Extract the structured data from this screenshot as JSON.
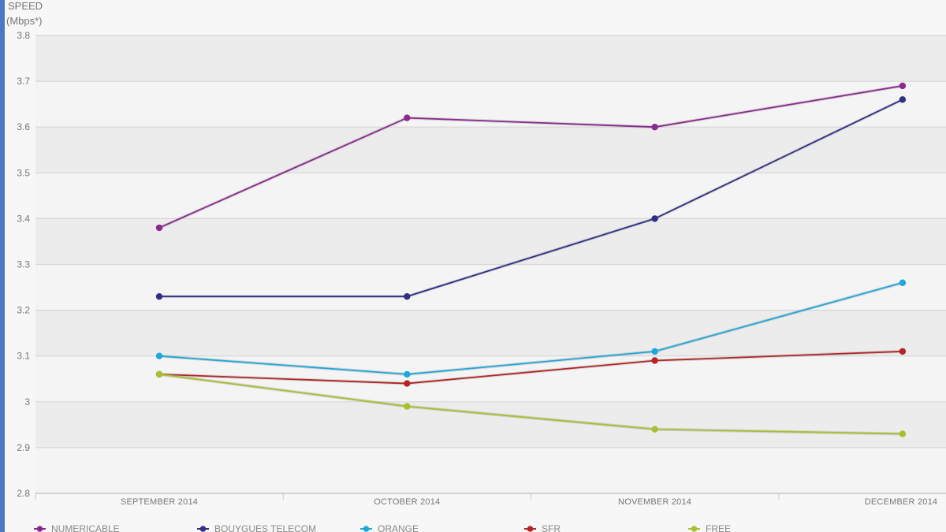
{
  "chart_data": {
    "type": "line",
    "ylabel_line1": "SPEED",
    "ylabel_line2": "(Mbps*)",
    "categories": [
      "SEPTEMBER 2014",
      "OCTOBER 2014",
      "NOVEMBER 2014",
      "DECEMBER 2014"
    ],
    "ylim": [
      2.8,
      3.8
    ],
    "yticks": [
      "2.8",
      "2.9",
      "3",
      "3.1",
      "3.2",
      "3.3",
      "3.4",
      "3.5",
      "3.6",
      "3.7",
      "3.8"
    ],
    "grid": true,
    "legend_position": "bottom",
    "series": [
      {
        "name": "NUMERICABLE",
        "color": "#8a2a8f",
        "values": [
          3.38,
          3.62,
          3.6,
          3.69
        ]
      },
      {
        "name": "BOUYGUES TELECOM",
        "color": "#2e2f85",
        "values": [
          3.23,
          3.23,
          3.4,
          3.66
        ]
      },
      {
        "name": "ORANGE",
        "color": "#1ea8da",
        "values": [
          3.1,
          3.06,
          3.11,
          3.26
        ]
      },
      {
        "name": "SFR",
        "color": "#b42525",
        "values": [
          3.06,
          3.04,
          3.09,
          3.11
        ]
      },
      {
        "name": "FREE",
        "color": "#a9bf2d",
        "values": [
          3.06,
          2.99,
          2.94,
          2.93
        ]
      }
    ]
  }
}
